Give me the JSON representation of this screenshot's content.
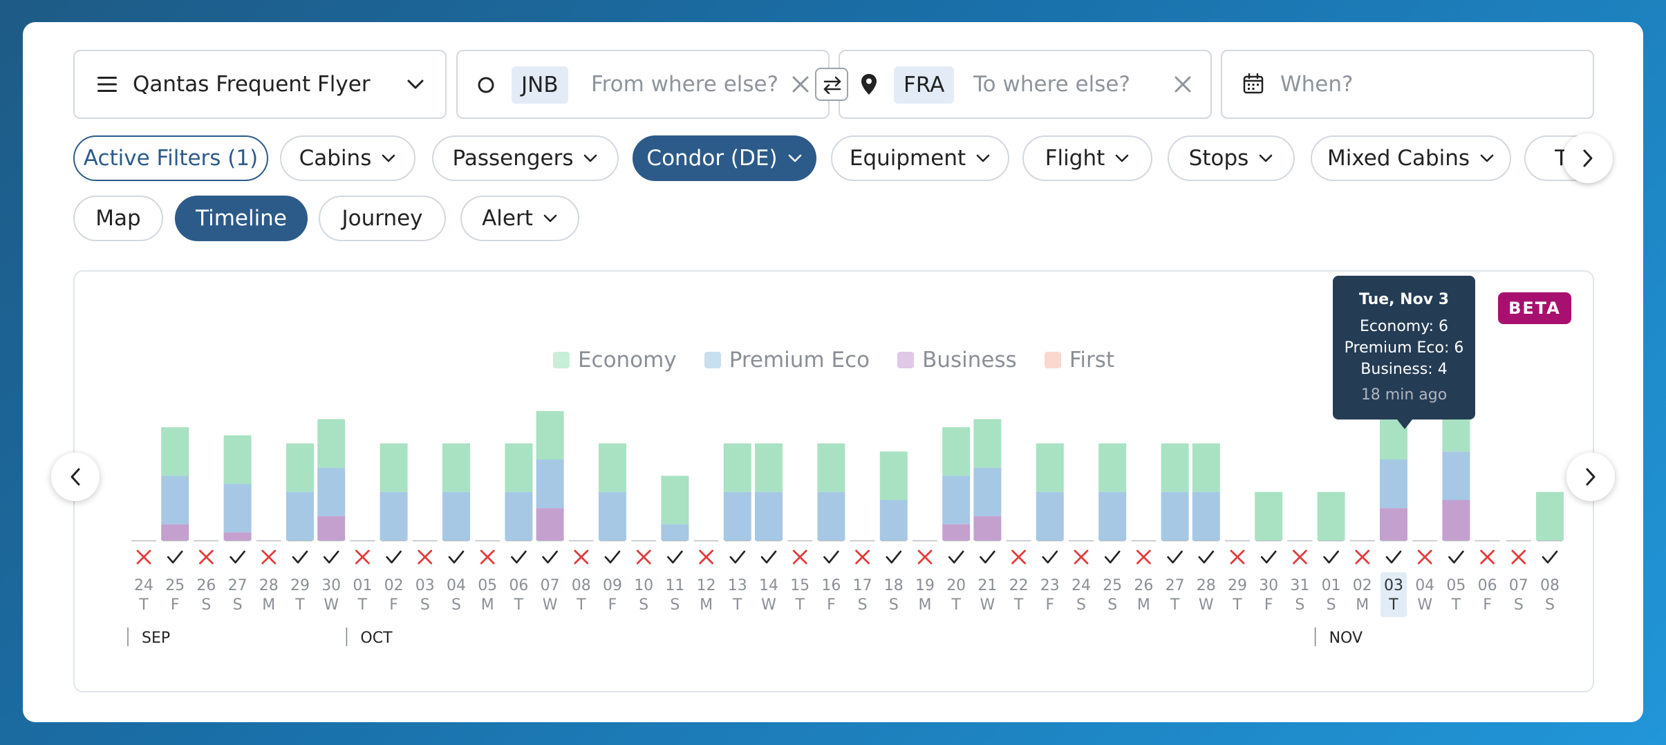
{
  "program": {
    "label": "Qantas Frequent Flyer"
  },
  "origin": {
    "code": "JNB",
    "placeholder": "From where else?"
  },
  "destination": {
    "code": "FRA",
    "placeholder": "To where else?"
  },
  "date": {
    "placeholder": "When?"
  },
  "filters": [
    {
      "label": "Active Filters (1)",
      "caret": false,
      "state": "active"
    },
    {
      "label": "Cabins",
      "caret": true,
      "state": "normal"
    },
    {
      "label": "Passengers",
      "caret": true,
      "state": "normal"
    },
    {
      "label": "Condor (DE)",
      "caret": true,
      "state": "selected"
    },
    {
      "label": "Equipment",
      "caret": true,
      "state": "normal"
    },
    {
      "label": "Flight",
      "caret": true,
      "state": "normal"
    },
    {
      "label": "Stops",
      "caret": true,
      "state": "normal"
    },
    {
      "label": "Mixed Cabins",
      "caret": true,
      "state": "normal"
    },
    {
      "label": "Time",
      "caret": true,
      "state": "normal"
    }
  ],
  "views": [
    {
      "label": "Map",
      "caret": false,
      "state": "normal"
    },
    {
      "label": "Timeline",
      "caret": false,
      "state": "selected"
    },
    {
      "label": "Journey",
      "caret": false,
      "state": "normal"
    },
    {
      "label": "Alert",
      "caret": true,
      "state": "normal"
    }
  ],
  "badge": "BETA",
  "tooltip": {
    "title": "Tue, Nov 3",
    "economy": "Economy: 6",
    "premium": "Premium Eco: 6",
    "business": "Business: 4",
    "ago": "18 min ago"
  },
  "colors": {
    "economy": "#a8e2c3",
    "premium": "#a6c8e4",
    "business": "#c4a0cf",
    "first": "#f6cfc6",
    "available": "#222222",
    "unavailable": "#e23b3b",
    "highlight": "#e2ecf6"
  },
  "chart_data": {
    "type": "bar",
    "stacked": true,
    "legend": [
      "Economy",
      "Premium Eco",
      "Business",
      "First"
    ],
    "days": [
      "24",
      "25",
      "26",
      "27",
      "28",
      "29",
      "30",
      "01",
      "02",
      "03",
      "04",
      "05",
      "06",
      "07",
      "08",
      "09",
      "10",
      "11",
      "12",
      "13",
      "14",
      "15",
      "16",
      "17",
      "18",
      "19",
      "20",
      "21",
      "22",
      "23",
      "24",
      "25",
      "26",
      "27",
      "28",
      "29",
      "30",
      "31",
      "01",
      "02",
      "03",
      "04",
      "05",
      "06",
      "07",
      "08"
    ],
    "weekdays": [
      "T",
      "F",
      "S",
      "S",
      "M",
      "T",
      "W",
      "T",
      "F",
      "S",
      "S",
      "M",
      "T",
      "W",
      "T",
      "F",
      "S",
      "S",
      "M",
      "T",
      "W",
      "T",
      "F",
      "S",
      "S",
      "M",
      "T",
      "W",
      "T",
      "F",
      "S",
      "S",
      "M",
      "T",
      "W",
      "T",
      "F",
      "S",
      "S",
      "M",
      "T",
      "W",
      "T",
      "F",
      "S",
      "S"
    ],
    "available": [
      false,
      true,
      false,
      true,
      false,
      true,
      true,
      false,
      true,
      false,
      true,
      false,
      true,
      true,
      false,
      true,
      false,
      true,
      false,
      true,
      true,
      false,
      true,
      false,
      true,
      false,
      true,
      true,
      false,
      true,
      false,
      true,
      false,
      true,
      true,
      false,
      true,
      false,
      true,
      false,
      true,
      false,
      true,
      false,
      false,
      true
    ],
    "series": [
      {
        "name": "Economy",
        "values": [
          0,
          6,
          0,
          6,
          0,
          6,
          6,
          0,
          6,
          0,
          6,
          0,
          6,
          6,
          0,
          6,
          0,
          6,
          0,
          6,
          6,
          0,
          6,
          0,
          6,
          0,
          6,
          6,
          0,
          6,
          0,
          6,
          0,
          6,
          6,
          0,
          6,
          0,
          6,
          0,
          6,
          0,
          6,
          0,
          0,
          6
        ]
      },
      {
        "name": "Premium Eco",
        "values": [
          0,
          6,
          0,
          6,
          0,
          6,
          6,
          0,
          6,
          0,
          6,
          0,
          6,
          6,
          0,
          6,
          0,
          2,
          0,
          6,
          6,
          0,
          6,
          0,
          5,
          0,
          6,
          6,
          0,
          6,
          0,
          6,
          0,
          6,
          6,
          0,
          0,
          0,
          0,
          0,
          6,
          0,
          6,
          0,
          0,
          0
        ]
      },
      {
        "name": "Business",
        "values": [
          0,
          2,
          0,
          1,
          0,
          0,
          3,
          0,
          0,
          0,
          0,
          0,
          0,
          4,
          0,
          0,
          0,
          0,
          0,
          0,
          0,
          0,
          0,
          0,
          0,
          0,
          2,
          3,
          0,
          0,
          0,
          0,
          0,
          0,
          0,
          0,
          0,
          0,
          0,
          0,
          4,
          0,
          5,
          0,
          0,
          0
        ]
      },
      {
        "name": "First",
        "values": [
          0,
          0,
          0,
          0,
          0,
          0,
          0,
          0,
          0,
          0,
          0,
          0,
          0,
          0,
          0,
          0,
          0,
          0,
          0,
          0,
          0,
          0,
          0,
          0,
          0,
          0,
          0,
          0,
          0,
          0,
          0,
          0,
          0,
          0,
          0,
          0,
          0,
          0,
          0,
          0,
          0,
          0,
          0,
          0,
          0,
          0
        ]
      }
    ],
    "months": [
      {
        "label": "SEP",
        "start_index": 0
      },
      {
        "label": "OCT",
        "start_index": 7
      },
      {
        "label": "NOV",
        "start_index": 38
      }
    ],
    "highlight_index": 40
  }
}
